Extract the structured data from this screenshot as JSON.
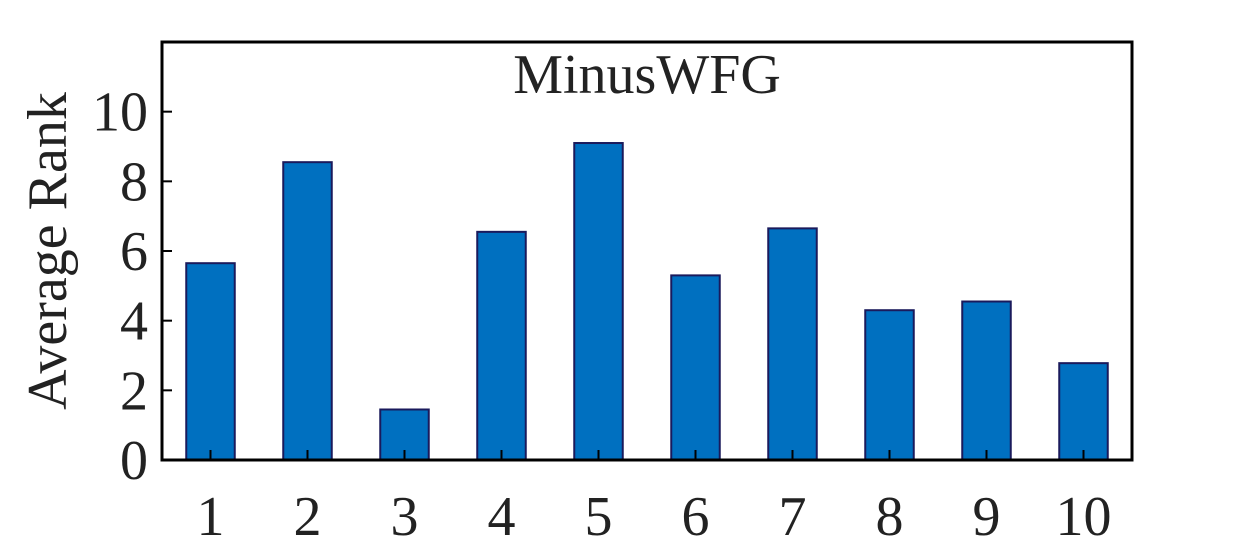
{
  "chart_data": {
    "type": "bar",
    "title": "MinusWFG",
    "xlabel": "",
    "ylabel": "Average Rank",
    "categories": [
      "1",
      "2",
      "3",
      "4",
      "5",
      "6",
      "7",
      "8",
      "9",
      "10"
    ],
    "values": [
      5.65,
      8.55,
      1.45,
      6.55,
      9.1,
      5.3,
      6.65,
      4.3,
      4.55,
      2.78
    ],
    "ylim": [
      0,
      12
    ],
    "yticks": [
      "0",
      "2",
      "4",
      "6",
      "8",
      "10"
    ],
    "grid": false,
    "bar_color": "#0070C0",
    "bar_edge_color": "#1A1A5C"
  }
}
